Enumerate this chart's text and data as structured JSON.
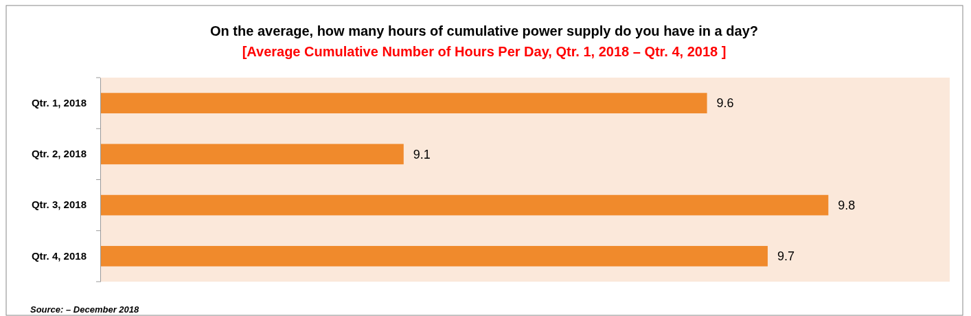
{
  "chart_data": {
    "type": "bar",
    "orientation": "horizontal",
    "title": "On the average, how many hours of cumulative power supply do you have in a day?",
    "subtitle": "[Average Cumulative Number of Hours Per Day, Qtr. 1,  2018 – Qtr. 4,  2018 ]",
    "categories": [
      "Qtr. 1, 2018",
      "Qtr. 2, 2018",
      "Qtr. 3, 2018",
      "Qtr. 4, 2018"
    ],
    "values": [
      9.6,
      9.1,
      9.8,
      9.7
    ],
    "color": "#f08a2c",
    "xlim": [
      8.6,
      10.0
    ],
    "data_labels": true,
    "annotations": [
      "Source: – December 2018"
    ]
  }
}
